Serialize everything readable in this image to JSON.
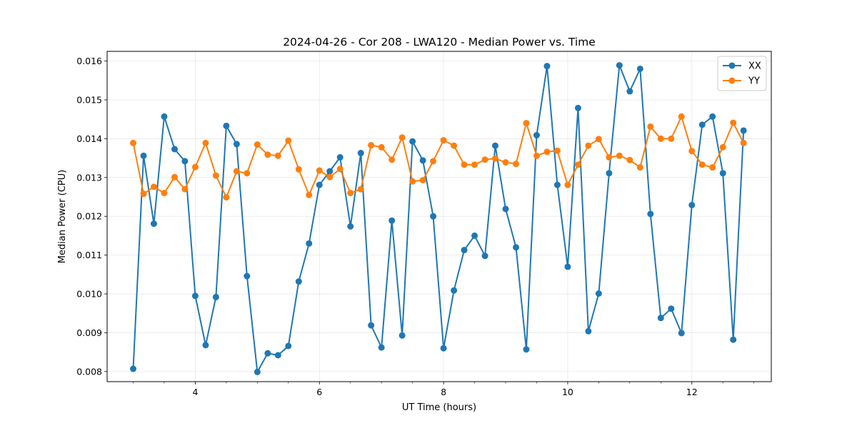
{
  "chart_data": {
    "type": "line",
    "title": "2024-04-26 - Cor 208 - LWA120 - Median Power vs. Time",
    "xlabel": "UT Time (hours)",
    "ylabel": "Median Power (CPU)",
    "xlim": [
      2.58,
      13.28
    ],
    "ylim": [
      0.00774,
      0.01625
    ],
    "xticks": [
      4,
      6,
      8,
      10,
      12
    ],
    "xtick_labels": [
      "4",
      "6",
      "8",
      "10",
      "12"
    ],
    "xminor_step": 0.5,
    "yticks": [
      0.008,
      0.009,
      0.01,
      0.011,
      0.012,
      0.013,
      0.014,
      0.015,
      0.016
    ],
    "ytick_labels": [
      "0.008",
      "0.009",
      "0.010",
      "0.011",
      "0.012",
      "0.013",
      "0.014",
      "0.015",
      "0.016"
    ],
    "grid": true,
    "legend_position": "top-right",
    "x": [
      3.0,
      3.167,
      3.333,
      3.5,
      3.667,
      3.833,
      4.0,
      4.167,
      4.333,
      4.5,
      4.667,
      4.833,
      5.0,
      5.167,
      5.333,
      5.5,
      5.667,
      5.833,
      6.0,
      6.167,
      6.333,
      6.5,
      6.667,
      6.833,
      7.0,
      7.167,
      7.333,
      7.5,
      7.667,
      7.833,
      8.0,
      8.167,
      8.333,
      8.5,
      8.667,
      8.833,
      9.0,
      9.167,
      9.333,
      9.5,
      9.667,
      9.833,
      10.0,
      10.167,
      10.333,
      10.5,
      10.667,
      10.833,
      11.0,
      11.167,
      11.333,
      11.5,
      11.667,
      11.833,
      12.0,
      12.167,
      12.333,
      12.5,
      12.667,
      12.833
    ],
    "series": [
      {
        "name": "XX",
        "color": "#1f77b4",
        "values": [
          0.00807,
          0.01356,
          0.01181,
          0.01457,
          0.01373,
          0.01342,
          0.00995,
          0.00868,
          0.00992,
          0.01433,
          0.01386,
          0.01046,
          0.00799,
          0.00847,
          0.00842,
          0.00866,
          0.01032,
          0.0113,
          0.01281,
          0.01316,
          0.01352,
          0.01174,
          0.01363,
          0.00919,
          0.00862,
          0.01189,
          0.00893,
          0.01393,
          0.01344,
          0.012,
          0.0086,
          0.01009,
          0.01113,
          0.0115,
          0.01098,
          0.01382,
          0.01219,
          0.0112,
          0.00857,
          0.01409,
          0.01587,
          0.01281,
          0.0107,
          0.01479,
          0.00904,
          0.01001,
          0.01311,
          0.01589,
          0.01522,
          0.0158,
          0.01206,
          0.00938,
          0.00962,
          0.00899,
          0.01229,
          0.01436,
          0.01457,
          0.01311,
          0.00882,
          0.01421
        ]
      },
      {
        "name": "YY",
        "color": "#ff7f0e",
        "values": [
          0.01389,
          0.01258,
          0.01276,
          0.0126,
          0.01301,
          0.0127,
          0.01327,
          0.01389,
          0.01305,
          0.01249,
          0.01316,
          0.01311,
          0.01385,
          0.01359,
          0.01356,
          0.01395,
          0.01321,
          0.01255,
          0.01318,
          0.01301,
          0.01322,
          0.0126,
          0.0127,
          0.01383,
          0.01378,
          0.01346,
          0.01403,
          0.0129,
          0.01293,
          0.01342,
          0.01396,
          0.01382,
          0.01333,
          0.01333,
          0.01346,
          0.01349,
          0.01339,
          0.01335,
          0.0144,
          0.01356,
          0.01366,
          0.01369,
          0.01281,
          0.01333,
          0.01382,
          0.01399,
          0.01352,
          0.01356,
          0.01345,
          0.01326,
          0.01431,
          0.014,
          0.014,
          0.01457,
          0.01368,
          0.01333,
          0.01326,
          0.01378,
          0.01441,
          0.01389
        ]
      }
    ]
  }
}
